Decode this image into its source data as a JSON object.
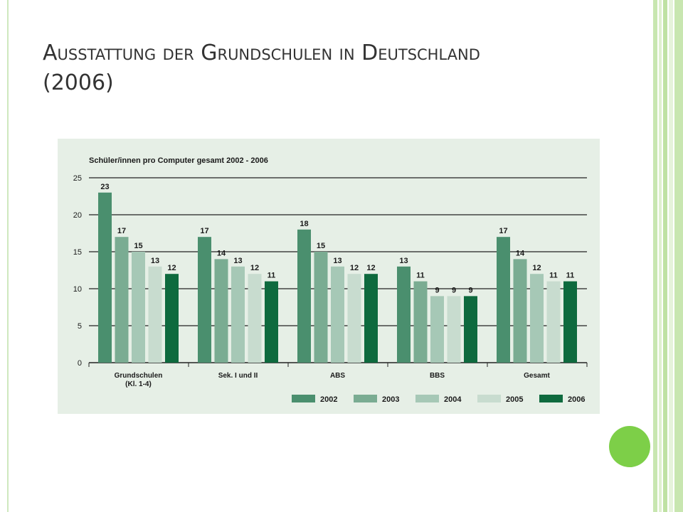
{
  "slide": {
    "title_line1": "Ausstattung der Grundschulen in Deutschland",
    "title_line2": "(2006)"
  },
  "theme": {
    "panel_bg": "#e6efe6",
    "accent_circle": "#7dcf48",
    "stripe_colors": [
      "#c8e6b0",
      "#dff0cf",
      "#bfe1a3",
      "#e6f3da",
      "#c8e6b0"
    ],
    "left_line": "#cfe8bf",
    "gridline": "#222222",
    "text": "#1a1a1a"
  },
  "chart_data": {
    "type": "bar",
    "title": "Schüler/innen pro Computer gesamt 2002 - 2006",
    "xlabel": "",
    "ylabel": "",
    "ylim": [
      0,
      25
    ],
    "yticks": [
      0,
      5,
      10,
      15,
      20,
      25
    ],
    "grid": true,
    "legend_position": "bottom-right",
    "categories": [
      "Grundschulen\n(Kl. 1-4)",
      "Sek. I und II",
      "ABS",
      "BBS",
      "Gesamt"
    ],
    "series": [
      {
        "name": "2002",
        "color": "#4a8f6e",
        "values": [
          23,
          17,
          18,
          13,
          17
        ]
      },
      {
        "name": "2003",
        "color": "#7aac92",
        "values": [
          17,
          14,
          15,
          11,
          14
        ]
      },
      {
        "name": "2004",
        "color": "#a6c8b6",
        "values": [
          15,
          13,
          13,
          9,
          12
        ]
      },
      {
        "name": "2005",
        "color": "#c8dccf",
        "values": [
          13,
          12,
          12,
          9,
          11
        ]
      },
      {
        "name": "2006",
        "color": "#0e6a3e",
        "values": [
          12,
          11,
          12,
          9,
          11
        ]
      }
    ]
  }
}
